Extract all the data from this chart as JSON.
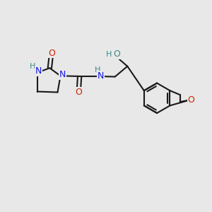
{
  "bg_color": "#e8e8e8",
  "bond_color": "#1a1a1a",
  "N_color": "#1414ee",
  "O_red_color": "#cc2200",
  "O_teal_color": "#3d8888",
  "H_teal_color": "#3d8888",
  "lw": 1.5,
  "fs": 9.0,
  "fsH": 8.0,
  "figsize": [
    3.0,
    3.0
  ],
  "dpi": 100,
  "xlim": [
    0,
    10
  ],
  "ylim": [
    0,
    10
  ]
}
